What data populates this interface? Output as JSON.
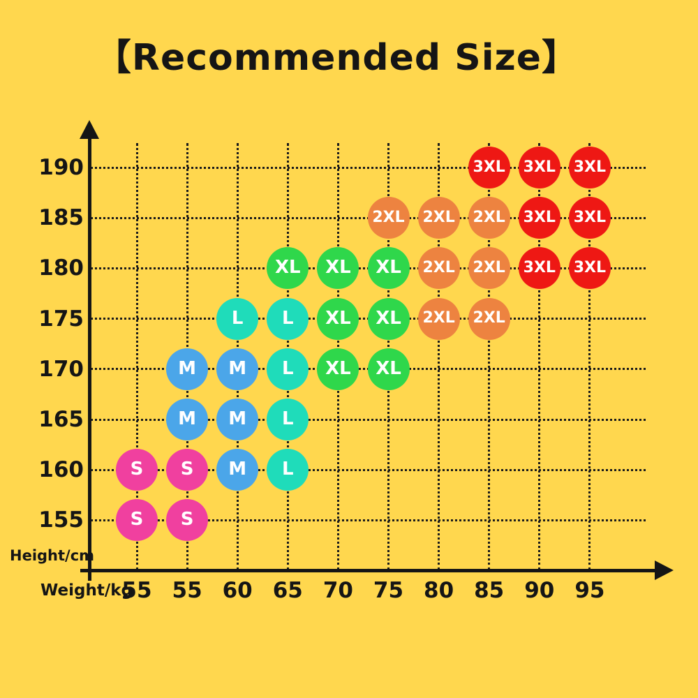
{
  "page": {
    "background_color": "#FFD74E"
  },
  "chart_data": {
    "type": "scatter",
    "title": "【Recommended Size】",
    "xlabel": "Weight/kg",
    "ylabel": "Height/cm",
    "x_ticks": [
      "55",
      "55",
      "60",
      "65",
      "70",
      "75",
      "80",
      "85",
      "90",
      "95"
    ],
    "y_ticks": [
      "190",
      "185",
      "180",
      "175",
      "170",
      "165",
      "160",
      "155"
    ],
    "grid": true,
    "axis_color": "#151515",
    "dot_text_color": "#FFFFFF",
    "size_colors": {
      "S": "#F0409F",
      "M": "#4BA6E9",
      "L": "#1FDCBA",
      "XL": "#2FD74B",
      "2XL": "#ED8340",
      "3XL": "#EE1814"
    },
    "points": [
      {
        "weight_index": 7,
        "height": "190",
        "size": "3XL"
      },
      {
        "weight_index": 8,
        "height": "190",
        "size": "3XL"
      },
      {
        "weight_index": 9,
        "height": "190",
        "size": "3XL"
      },
      {
        "weight_index": 5,
        "height": "185",
        "size": "2XL"
      },
      {
        "weight_index": 6,
        "height": "185",
        "size": "2XL"
      },
      {
        "weight_index": 7,
        "height": "185",
        "size": "2XL"
      },
      {
        "weight_index": 8,
        "height": "185",
        "size": "3XL"
      },
      {
        "weight_index": 9,
        "height": "185",
        "size": "3XL"
      },
      {
        "weight_index": 3,
        "height": "180",
        "size": "XL"
      },
      {
        "weight_index": 4,
        "height": "180",
        "size": "XL"
      },
      {
        "weight_index": 5,
        "height": "180",
        "size": "XL"
      },
      {
        "weight_index": 6,
        "height": "180",
        "size": "2XL"
      },
      {
        "weight_index": 7,
        "height": "180",
        "size": "2XL"
      },
      {
        "weight_index": 8,
        "height": "180",
        "size": "3XL"
      },
      {
        "weight_index": 9,
        "height": "180",
        "size": "3XL"
      },
      {
        "weight_index": 2,
        "height": "175",
        "size": "L"
      },
      {
        "weight_index": 3,
        "height": "175",
        "size": "L"
      },
      {
        "weight_index": 4,
        "height": "175",
        "size": "XL"
      },
      {
        "weight_index": 5,
        "height": "175",
        "size": "XL"
      },
      {
        "weight_index": 6,
        "height": "175",
        "size": "2XL"
      },
      {
        "weight_index": 7,
        "height": "175",
        "size": "2XL"
      },
      {
        "weight_index": 1,
        "height": "170",
        "size": "M"
      },
      {
        "weight_index": 2,
        "height": "170",
        "size": "M"
      },
      {
        "weight_index": 3,
        "height": "170",
        "size": "L"
      },
      {
        "weight_index": 4,
        "height": "170",
        "size": "XL"
      },
      {
        "weight_index": 5,
        "height": "170",
        "size": "XL"
      },
      {
        "weight_index": 1,
        "height": "165",
        "size": "M"
      },
      {
        "weight_index": 2,
        "height": "165",
        "size": "M"
      },
      {
        "weight_index": 3,
        "height": "165",
        "size": "L"
      },
      {
        "weight_index": 0,
        "height": "160",
        "size": "S"
      },
      {
        "weight_index": 1,
        "height": "160",
        "size": "S"
      },
      {
        "weight_index": 2,
        "height": "160",
        "size": "M"
      },
      {
        "weight_index": 3,
        "height": "160",
        "size": "L"
      },
      {
        "weight_index": 0,
        "height": "155",
        "size": "S"
      },
      {
        "weight_index": 1,
        "height": "155",
        "size": "S"
      }
    ]
  }
}
